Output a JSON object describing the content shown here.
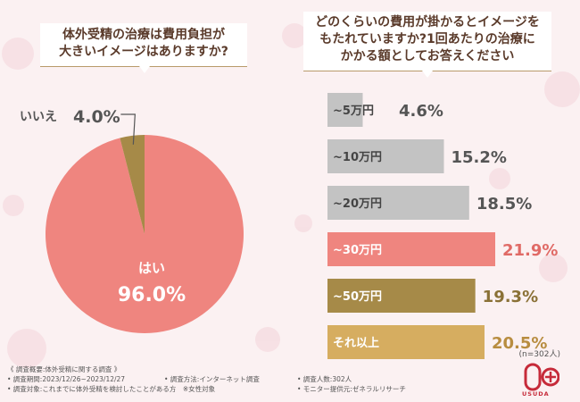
{
  "left_question": {
    "line1": "体外受精の治療は費用負担が",
    "line2": "大きいイメージはありますか?"
  },
  "right_question": {
    "line1": "どのくらいの費用が掛かるとイメージを",
    "line2": "もたれていますか?1回あたりの治療に",
    "line3": "かかる額としてお答えください"
  },
  "chart_data": [
    {
      "type": "pie",
      "slices": [
        {
          "label": "はい",
          "value": 96.0,
          "value_label": "96.0%",
          "color": "#ef857f"
        },
        {
          "label": "いいえ",
          "value": 4.0,
          "value_label": "4.0%",
          "color": "#a68a48"
        }
      ]
    },
    {
      "type": "bar",
      "orientation": "horizontal",
      "categories": [
        "~5万円",
        "~10万円",
        "~20万円",
        "~30万円",
        "~50万円",
        "それ以上"
      ],
      "values": [
        4.6,
        15.2,
        18.5,
        21.9,
        19.3,
        20.5
      ],
      "value_labels": [
        "4.6%",
        "15.2%",
        "18.5%",
        "21.9%",
        "19.3%",
        "20.5%"
      ],
      "colors": [
        "#c3c3c3",
        "#c3c3c3",
        "#c3c3c3",
        "#ef857f",
        "#a68a48",
        "#d6ad60"
      ],
      "label_colors": [
        "#555555",
        "#555555",
        "#555555",
        "#e06a66",
        "#8a7136",
        "#b88d40"
      ],
      "max_value": 21.9
    }
  ],
  "sample_note": "(n=302人)",
  "footer": {
    "summary_title": "《 調査概要:体外受精に関する調査 》",
    "period": "• 調査期間:2023/12/26~2023/12/27",
    "method": "• 調査方法:インターネット調査",
    "count": "• 調査人数:302人",
    "target": "• 調査対象:これまでに体外受精を検討したことがある方　※女性対象",
    "provider": "• モニター提供元:ゼネラルリサーチ"
  },
  "logo_text": "USUDA"
}
